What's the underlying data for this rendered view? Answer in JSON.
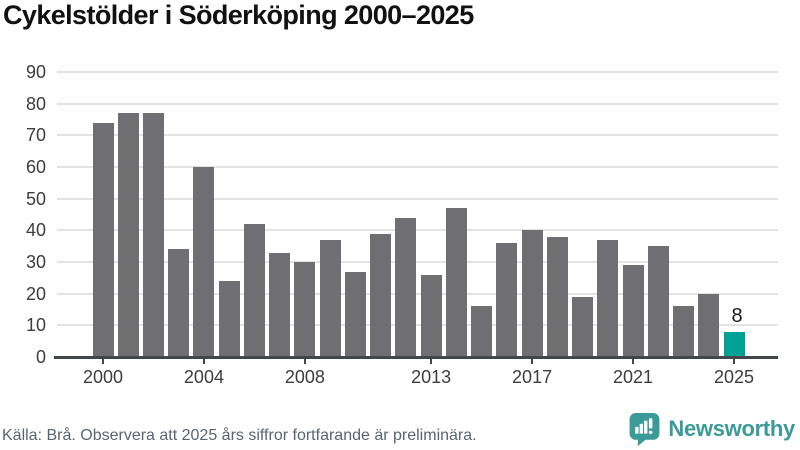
{
  "title": "Cykelstölder i Söderköping 2000–2025",
  "footer": {
    "source": "Källa: Brå. Observera att 2025 års siffror fortfarande är preliminära."
  },
  "branding": {
    "name": "Newsworthy",
    "icon": "newsworthy-speech-bubble-chart-icon",
    "color": "#3a9b98"
  },
  "chart_data": {
    "type": "bar",
    "title": "Cykelstölder i Söderköping 2000–2025",
    "categories": [
      2000,
      2001,
      2002,
      2003,
      2004,
      2005,
      2006,
      2007,
      2008,
      2009,
      2010,
      2011,
      2012,
      2013,
      2014,
      2015,
      2016,
      2017,
      2018,
      2019,
      2020,
      2021,
      2022,
      2023,
      2024,
      2025
    ],
    "values": [
      74,
      77,
      77,
      34,
      60,
      24,
      42,
      33,
      30,
      37,
      27,
      39,
      44,
      26,
      47,
      16,
      36,
      40,
      38,
      19,
      37,
      29,
      35,
      16,
      20,
      8
    ],
    "ylim": [
      0,
      90
    ],
    "y_ticks": [
      0,
      10,
      20,
      30,
      40,
      50,
      60,
      70,
      80,
      90
    ],
    "x_tick_years": [
      2000,
      2004,
      2008,
      2013,
      2017,
      2021,
      2025
    ],
    "grid": "horizontal",
    "legend": "none",
    "bar_color": "#6f6e73",
    "highlight_year": 2025,
    "highlight_color": "#00a296",
    "annotations": [
      {
        "year": 2025,
        "text": "8"
      }
    ]
  }
}
